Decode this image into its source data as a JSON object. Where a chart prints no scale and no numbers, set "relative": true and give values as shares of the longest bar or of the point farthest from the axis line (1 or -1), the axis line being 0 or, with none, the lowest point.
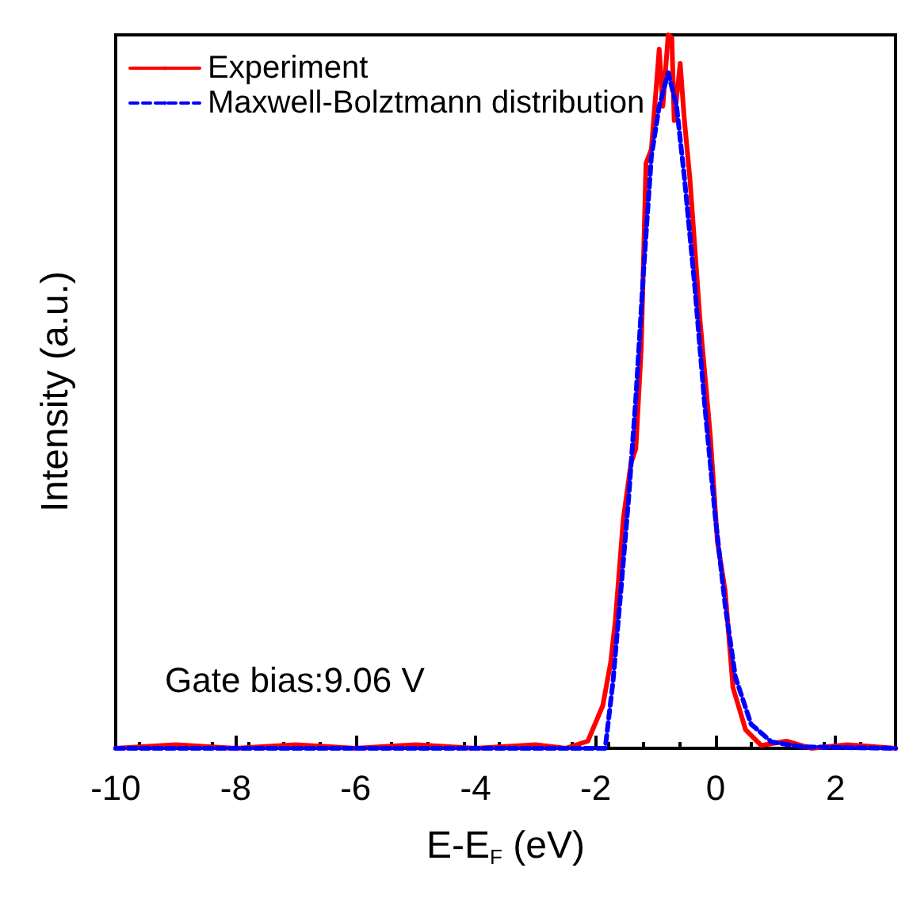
{
  "chart_data": {
    "type": "line",
    "relative": true,
    "xlabel": "E-E$_{F}$ (eV)",
    "ylabel": "Intensity (a.u.)",
    "xlim": [
      -10,
      3
    ],
    "xticks": [
      -10,
      -8,
      -6,
      -4,
      -2,
      0,
      2
    ],
    "tick_labels": "x",
    "grid": false,
    "legend": "top left",
    "marker": "none",
    "annotations": [
      "Gate bias:9.06 V"
    ],
    "series": [
      {
        "name": "Experiment",
        "color": "#ff0000",
        "line_style": "solid",
        "x": [
          -10,
          -9,
          -8,
          -7,
          -6,
          -5,
          -4,
          -3,
          -2.5,
          -2.13,
          -1.88,
          -1.75,
          -1.67,
          -1.54,
          -1.41,
          -1.33,
          -1.24,
          -1.16,
          -1.07,
          -0.94,
          -0.88,
          -0.79,
          -0.73,
          -0.69,
          -0.59,
          -0.52,
          -0.43,
          -0.26,
          -0.09,
          0.03,
          0.16,
          0.29,
          0.5,
          0.76,
          1.18,
          1.6,
          2.2,
          3
        ],
        "values": [
          0,
          0.005,
          0,
          0.005,
          0,
          0.005,
          0,
          0.005,
          0,
          0.01,
          0.06,
          0.12,
          0.18,
          0.32,
          0.4,
          0.42,
          0.56,
          0.82,
          0.84,
          0.98,
          0.9,
          1,
          0.996,
          0.88,
          0.96,
          0.88,
          0.8,
          0.6,
          0.44,
          0.29,
          0.22,
          0.085,
          0.026,
          0.004,
          0.01,
          0,
          0.005,
          0
        ]
      },
      {
        "name": "Maxwell-Bolztmann distribution",
        "color": "#0000ff",
        "line_style": "dashed",
        "x": [
          -10,
          -1.84,
          -1.71,
          -1.58,
          -1.45,
          -1.33,
          -1.2,
          -1.07,
          -0.94,
          -0.79,
          -0.65,
          -0.52,
          -0.35,
          -0.18,
          0,
          0.16,
          0.33,
          0.59,
          0.93,
          1.44,
          3
        ],
        "values": [
          0,
          0,
          0.094,
          0.22,
          0.35,
          0.49,
          0.67,
          0.83,
          0.9,
          0.947,
          0.9,
          0.8,
          0.65,
          0.48,
          0.32,
          0.2,
          0.1,
          0.034,
          0.009,
          0.002,
          0
        ]
      }
    ]
  }
}
